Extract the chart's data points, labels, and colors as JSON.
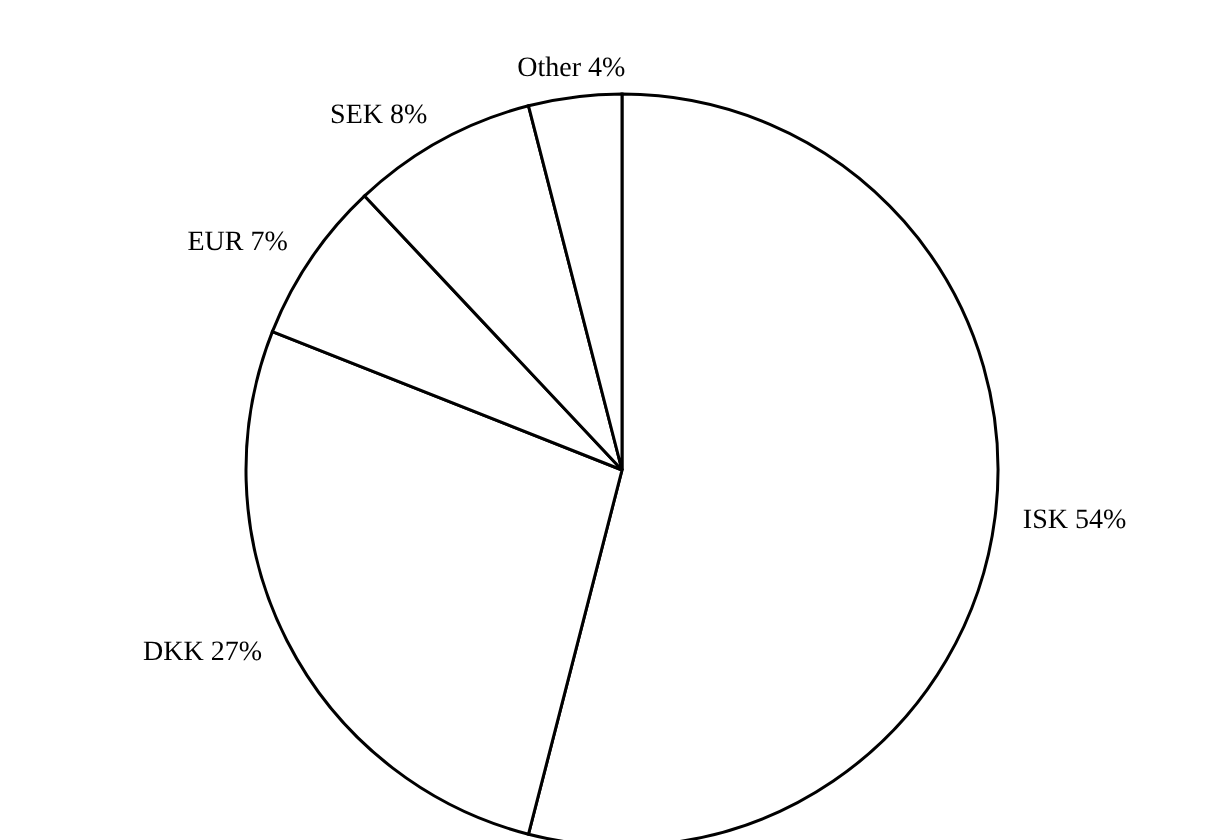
{
  "chart_data": {
    "type": "pie",
    "categories": [
      "ISK",
      "DKK",
      "EUR",
      "SEK",
      "Other"
    ],
    "values": [
      54,
      27,
      7,
      8,
      4
    ],
    "value_labels": [
      "54%",
      "27%",
      "7%",
      "8%",
      "4%"
    ],
    "colors": [
      "#ffffff",
      "#ffffff",
      "#ffffff",
      "#ffffff",
      "#ffffff"
    ]
  }
}
